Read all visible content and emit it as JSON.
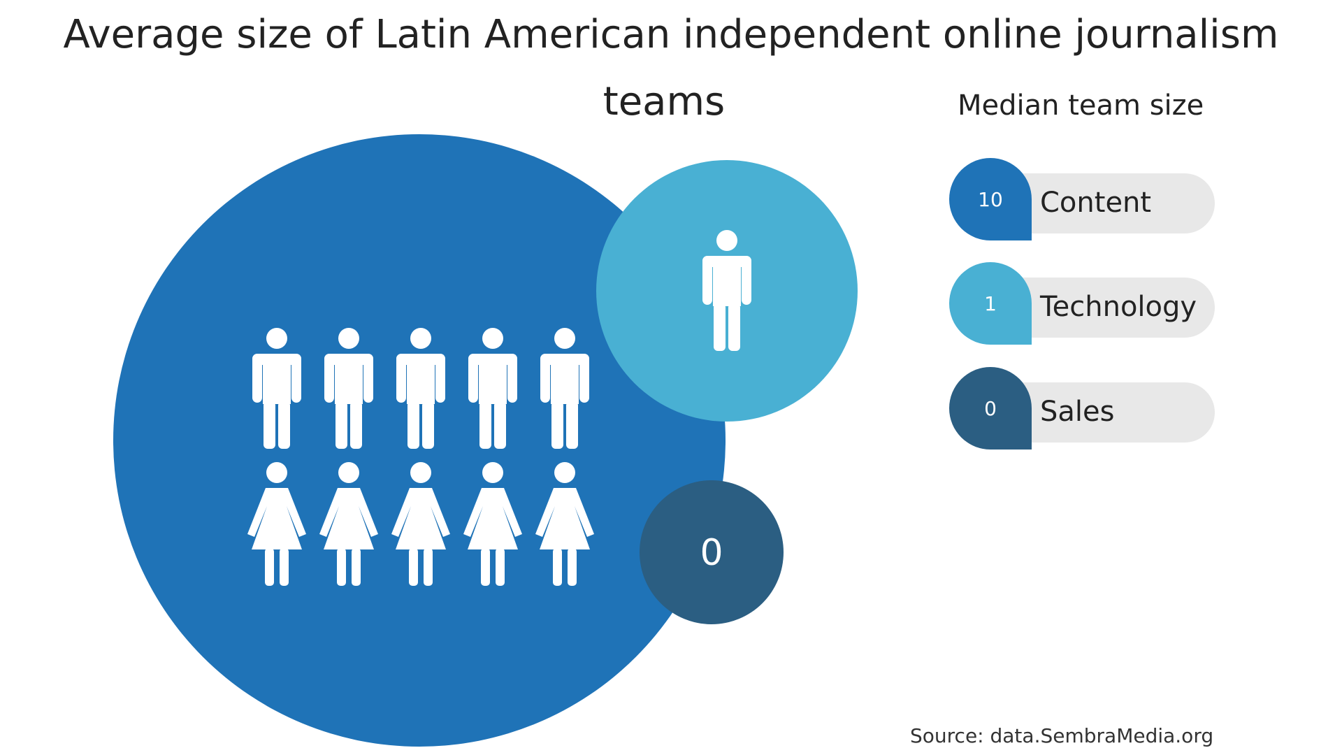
{
  "title_line1": "Average size of Latin American independent online journalism",
  "title_line2": "teams",
  "legend_heading": "Median team size",
  "source": "Source: data.SembraMedia.org",
  "colors": {
    "content": "#1f73b7",
    "technology": "#49b0d3",
    "sales": "#2b5e82",
    "figure": "#ffffff",
    "legend_pill": "#e8e8e8"
  },
  "chart_data": {
    "type": "bubble",
    "title": "Average size of Latin American independent online journalism teams",
    "legend_title": "Median team size",
    "categories": [
      "Content",
      "Technology",
      "Sales"
    ],
    "values": [
      10,
      1,
      0
    ],
    "bubble_labels": [
      "",
      "",
      "0"
    ],
    "icons": [
      "person-icon",
      "person-icon",
      ""
    ],
    "legend": [
      {
        "value": "10",
        "label": "Content"
      },
      {
        "value": "1",
        "label": "Technology"
      },
      {
        "value": "0",
        "label": "Sales"
      }
    ],
    "source": "Source: data.SembraMedia.org"
  }
}
